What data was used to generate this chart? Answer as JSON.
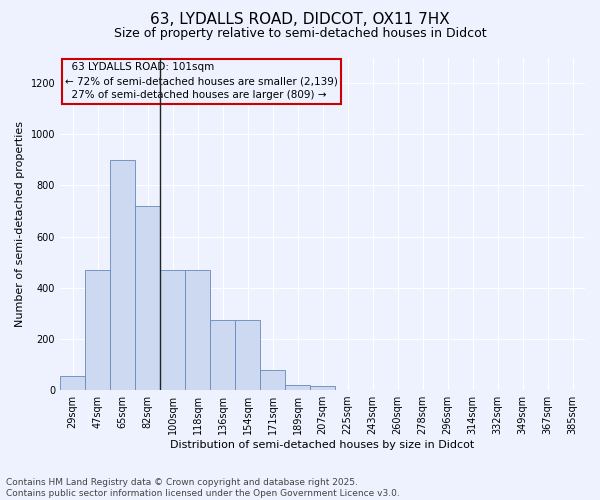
{
  "title_line1": "63, LYDALLS ROAD, DIDCOT, OX11 7HX",
  "title_line2": "Size of property relative to semi-detached houses in Didcot",
  "xlabel": "Distribution of semi-detached houses by size in Didcot",
  "ylabel": "Number of semi-detached properties",
  "categories": [
    "29sqm",
    "47sqm",
    "65sqm",
    "82sqm",
    "100sqm",
    "118sqm",
    "136sqm",
    "154sqm",
    "171sqm",
    "189sqm",
    "207sqm",
    "225sqm",
    "243sqm",
    "260sqm",
    "278sqm",
    "296sqm",
    "314sqm",
    "332sqm",
    "349sqm",
    "367sqm",
    "385sqm"
  ],
  "values": [
    55,
    470,
    900,
    720,
    470,
    470,
    275,
    275,
    80,
    20,
    15,
    0,
    0,
    0,
    0,
    0,
    0,
    0,
    0,
    0,
    0
  ],
  "bar_color": "#ccd9f0",
  "bar_edge_color": "#6688bb",
  "vline_color": "#222222",
  "vline_x": 3.5,
  "annotation_box_edge_color": "#cc0000",
  "property_label": "63 LYDALLS ROAD: 101sqm",
  "pct_smaller": 72,
  "n_smaller": 2139,
  "pct_larger": 27,
  "n_larger": 809,
  "ylim": [
    0,
    1300
  ],
  "yticks": [
    0,
    200,
    400,
    600,
    800,
    1000,
    1200
  ],
  "footer_line1": "Contains HM Land Registry data © Crown copyright and database right 2025.",
  "footer_line2": "Contains public sector information licensed under the Open Government Licence v3.0.",
  "background_color": "#eef2ff",
  "grid_color": "#ffffff",
  "title_fontsize": 11,
  "subtitle_fontsize": 9,
  "xlabel_fontsize": 8,
  "ylabel_fontsize": 8,
  "tick_fontsize": 7,
  "annotation_fontsize": 7.5,
  "footer_fontsize": 6.5
}
